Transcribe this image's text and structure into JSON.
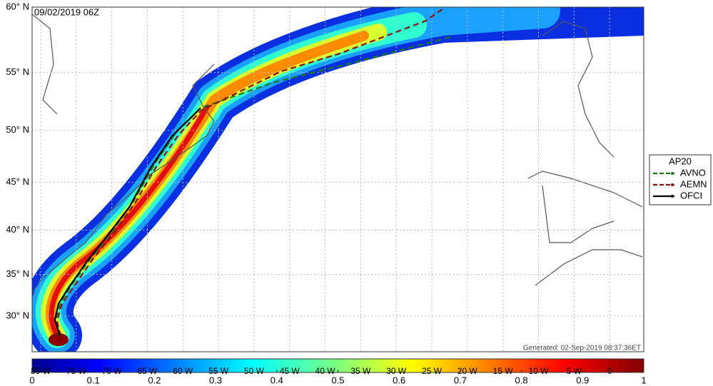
{
  "chart_data": {
    "type": "map",
    "title": "09/02/2019 06Z",
    "footnote": "Generated: 02-Sep-2019 08:37:36ET",
    "projection": "mercator",
    "xlim": [
      -81.2,
      4.8
    ],
    "ylim": [
      25.5,
      60
    ],
    "grid": true,
    "xticks": [
      {
        "value": -80,
        "label": "80 W"
      },
      {
        "value": -75,
        "label": "75 W"
      },
      {
        "value": -70,
        "label": "70 W"
      },
      {
        "value": -65,
        "label": "65 W"
      },
      {
        "value": -60,
        "label": "60 W"
      },
      {
        "value": -55,
        "label": "55 W"
      },
      {
        "value": -50,
        "label": "50 W"
      },
      {
        "value": -45,
        "label": "45 W"
      },
      {
        "value": -40,
        "label": "40 W"
      },
      {
        "value": -35,
        "label": "35 W"
      },
      {
        "value": -30,
        "label": "30 W"
      },
      {
        "value": -25,
        "label": "25 W"
      },
      {
        "value": -20,
        "label": "20 W"
      },
      {
        "value": -15,
        "label": "15 W"
      },
      {
        "value": -10,
        "label": "10 W"
      },
      {
        "value": -5,
        "label": "5 W"
      },
      0
    ],
    "yticks": [
      {
        "value": 30,
        "label": "30° N"
      },
      {
        "value": 35,
        "label": "35° N"
      },
      {
        "value": 40,
        "label": "40° N"
      },
      {
        "value": 45,
        "label": "45° N"
      },
      {
        "value": 50,
        "label": "50° N"
      },
      {
        "value": 55,
        "label": "55° N"
      },
      {
        "value": 60,
        "label": "60° N"
      }
    ],
    "legend_title": "AP20",
    "legend_position": "right",
    "series": [
      {
        "name": "AVNO",
        "color": "#1a7a1a",
        "dash": true,
        "x": [
          -77.4,
          -77.9,
          -77.2,
          -75.6,
          -73.0,
          -70.0,
          -67.0,
          -64.0,
          -61.0,
          -57.5,
          -47.2,
          -36.1,
          -22.4
        ],
        "y": [
          27.5,
          29.5,
          31.6,
          33.8,
          36.8,
          39.8,
          43.0,
          46.8,
          49.8,
          52.0,
          54.2,
          55.8,
          57.8
        ]
      },
      {
        "name": "AEMN",
        "color": "#8b1010",
        "dash": true,
        "x": [
          -77.2,
          -77.7,
          -77.0,
          -75.3,
          -72.8,
          -69.8,
          -66.8,
          -63.8,
          -60.6,
          -57.4,
          -46.2,
          -38.1,
          -25.9,
          -23.1
        ],
        "y": [
          27.5,
          29.4,
          31.5,
          33.6,
          36.6,
          39.6,
          42.8,
          46.5,
          49.6,
          51.8,
          55.1,
          56.5,
          59.0,
          60.0
        ]
      },
      {
        "name": "OFCI",
        "color": "#000000",
        "dash": false,
        "x": [
          -77.3,
          -78.0,
          -77.5,
          -76.0,
          -73.5,
          -70.5,
          -67.5,
          -64.5,
          -61.5,
          -57.5
        ],
        "y": [
          27.5,
          29.5,
          31.5,
          33.5,
          36.5,
          39.5,
          42.5,
          46.5,
          49.5,
          52.0
        ]
      }
    ],
    "colorbar": {
      "lim": [
        0,
        1
      ],
      "ticks": [
        0,
        0.1,
        0.2,
        0.3,
        0.4,
        0.5,
        0.6,
        0.7,
        0.8,
        0.9,
        1
      ]
    }
  }
}
